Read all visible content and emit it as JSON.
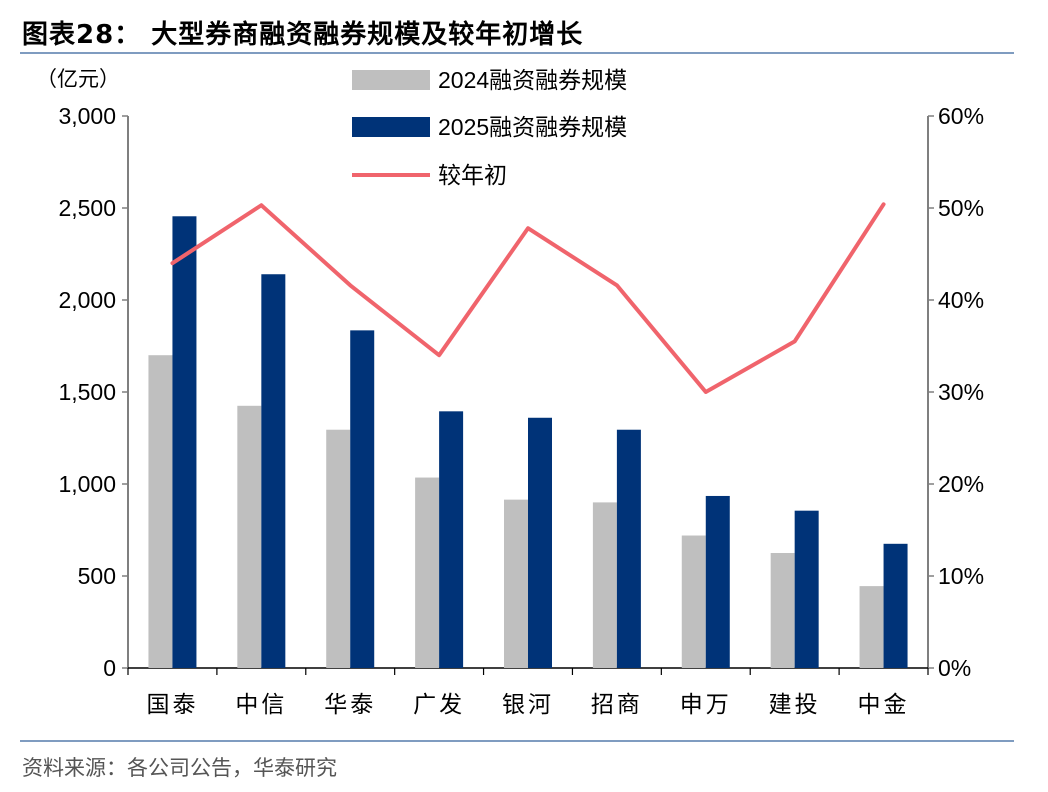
{
  "title": "图表28：  大型券商融资融券规模及较年初增长",
  "source": "资料来源：各公司公告，华泰研究",
  "chart_data": {
    "type": "bar",
    "left_unit": "（亿元）",
    "categories": [
      "国泰",
      "中信",
      "华泰",
      "广发",
      "银河",
      "招商",
      "申万",
      "建投",
      "中金"
    ],
    "series": [
      {
        "name": "2024融资融券规模",
        "kind": "bar",
        "axis": "left",
        "color": "#bfbfbf",
        "values": [
          1700,
          1425,
          1295,
          1035,
          915,
          900,
          720,
          625,
          445
        ]
      },
      {
        "name": "2025融资融券规模",
        "kind": "bar",
        "axis": "left",
        "color": "#003378",
        "values": [
          2455,
          2140,
          1835,
          1395,
          1360,
          1295,
          935,
          855,
          675
        ]
      },
      {
        "name": "较年初",
        "kind": "line",
        "axis": "right",
        "color": "#f0646c",
        "values": [
          0.44,
          0.503,
          0.416,
          0.34,
          0.478,
          0.416,
          0.3,
          0.355,
          0.504
        ]
      }
    ],
    "left_axis": {
      "min": 0,
      "max": 3000,
      "ticks": [
        "0",
        "500",
        "1,000",
        "1,500",
        "2,000",
        "2,500",
        "3,000"
      ]
    },
    "right_axis": {
      "min": 0,
      "max": 0.6,
      "ticks": [
        "0%",
        "10%",
        "20%",
        "30%",
        "40%",
        "50%",
        "60%"
      ]
    },
    "grid": false,
    "legend_position": "top-center"
  }
}
